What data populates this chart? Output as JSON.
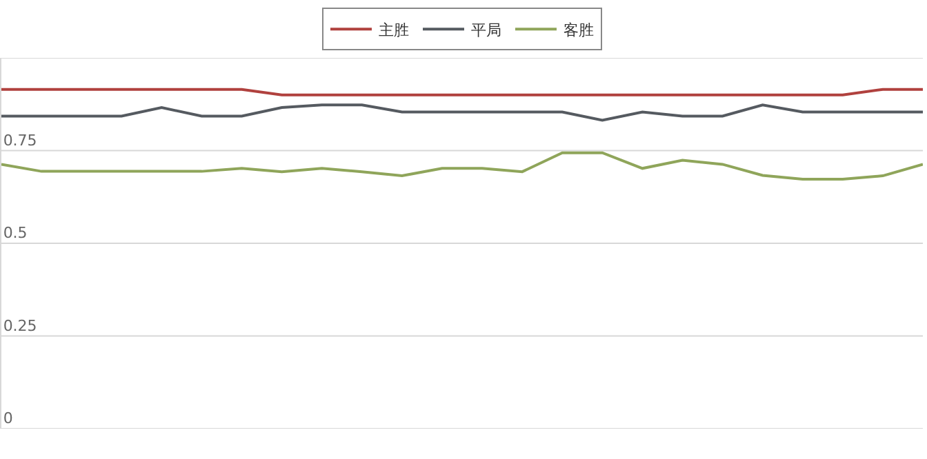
{
  "chart_data": {
    "type": "line",
    "categories": [
      null,
      null,
      null,
      null,
      null,
      null,
      null,
      null,
      null,
      null,
      null,
      null,
      null,
      null,
      null,
      null,
      null,
      null,
      null,
      null,
      null,
      null,
      null,
      null
    ],
    "series": [
      {
        "name": "主胜",
        "color": "#b0413e",
        "values": [
          0.915,
          0.915,
          0.915,
          0.915,
          0.915,
          0.915,
          0.915,
          0.9,
          0.9,
          0.9,
          0.9,
          0.9,
          0.9,
          0.9,
          0.9,
          0.9,
          0.9,
          0.9,
          0.9,
          0.9,
          0.9,
          0.9,
          0.915,
          0.915
        ]
      },
      {
        "name": "平局",
        "color": "#555a60",
        "values": [
          0.843,
          0.843,
          0.843,
          0.843,
          0.866,
          0.843,
          0.843,
          0.866,
          0.873,
          0.873,
          0.854,
          0.854,
          0.854,
          0.854,
          0.854,
          0.832,
          0.854,
          0.843,
          0.843,
          0.873,
          0.854,
          0.854,
          0.854,
          0.854
        ]
      },
      {
        "name": "客胜",
        "color": "#8fa55a",
        "values": [
          0.713,
          0.694,
          0.694,
          0.694,
          0.694,
          0.694,
          0.702,
          0.693,
          0.702,
          0.693,
          0.682,
          0.702,
          0.702,
          0.693,
          0.744,
          0.744,
          0.702,
          0.724,
          0.713,
          0.683,
          0.673,
          0.673,
          0.682,
          0.713
        ]
      }
    ],
    "ylim": [
      0,
      1
    ],
    "yticks": [
      0,
      0.25,
      0.5,
      0.75,
      {
        "value": 1,
        "label": null
      }
    ],
    "grid": "y",
    "legend": "top",
    "tick_labels": "y",
    "marker": "none",
    "line_style": "solid"
  }
}
